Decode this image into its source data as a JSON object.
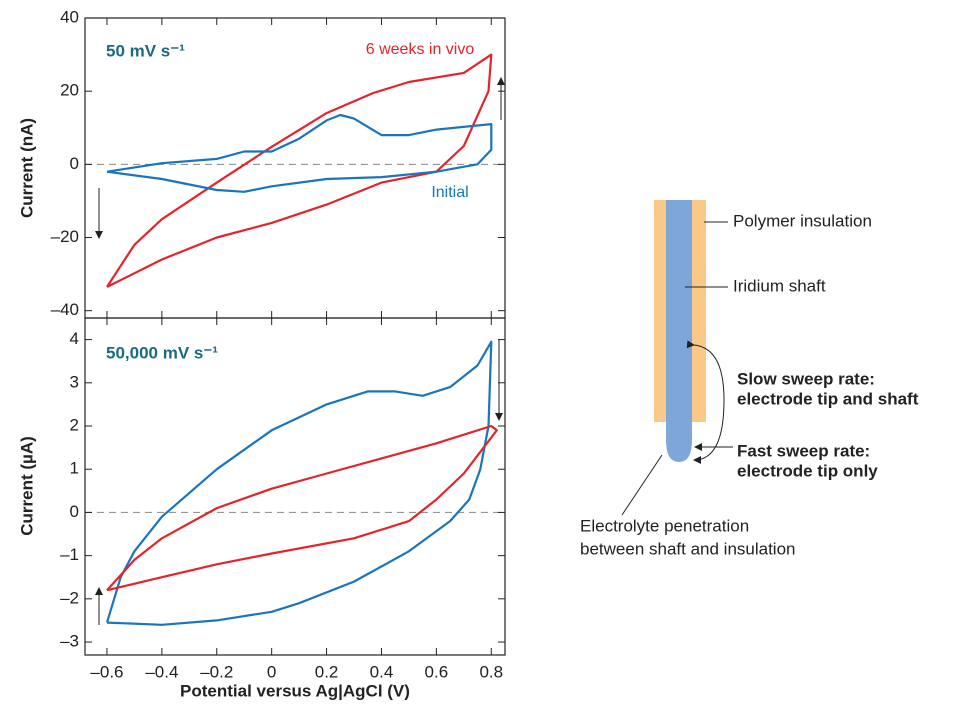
{
  "chart_data": [
    {
      "type": "line",
      "title": "50 mV s⁻¹",
      "y_label": "Current (nA)",
      "xlim": [
        -0.68,
        0.85
      ],
      "ylim": [
        -42,
        40
      ],
      "yticks": [
        {
          "value": -40,
          "label": "–40"
        },
        {
          "value": -20,
          "label": "–20"
        },
        0,
        20,
        40
      ],
      "series": [
        {
          "name": "6 weeks in vivo",
          "color": "#e3242b",
          "x": [
            -0.6,
            -0.5,
            -0.4,
            -0.2,
            0,
            0.2,
            0.37,
            0.5,
            0.7,
            0.8,
            0.79,
            0.7,
            0.6,
            0.4,
            0.2,
            0,
            -0.2,
            -0.4,
            -0.6
          ],
          "values": [
            -33.5,
            -22,
            -15,
            -5,
            4.8,
            14,
            19.5,
            22.5,
            25,
            30,
            20,
            5,
            -2,
            -5,
            -11,
            -16,
            -20,
            -26,
            -33.5
          ]
        },
        {
          "name": "Initial",
          "color": "#1a75bc",
          "x": [
            -0.6,
            -0.4,
            -0.2,
            -0.1,
            0,
            0.1,
            0.2,
            0.25,
            0.3,
            0.4,
            0.5,
            0.6,
            0.8,
            0.8,
            0.75,
            0.6,
            0.4,
            0.2,
            0,
            -0.1,
            -0.2,
            -0.4,
            -0.6
          ],
          "values": [
            -2,
            0.3,
            1.5,
            3.5,
            3.5,
            7,
            12,
            13.5,
            12.5,
            8,
            8,
            9.5,
            11,
            4,
            0,
            -2,
            -3.5,
            -4,
            -6,
            -7.5,
            -7,
            -4,
            -2
          ]
        }
      ]
    },
    {
      "type": "line",
      "title": "50,000 mV s⁻¹",
      "y_label": "Current (µA)",
      "x_label": "Potential versus Ag|AgCl (V)",
      "xlim": [
        -0.68,
        0.85
      ],
      "ylim": [
        -3.3,
        4.5
      ],
      "xticks": [
        {
          "value": -0.6,
          "label": "–0.6"
        },
        {
          "value": -0.4,
          "label": "–0.4"
        },
        {
          "value": -0.2,
          "label": "–0.2"
        },
        0,
        0.2,
        0.4,
        0.6,
        0.8
      ],
      "yticks": [
        {
          "value": -3,
          "label": "–3"
        },
        {
          "value": -2,
          "label": "–2"
        },
        {
          "value": -1,
          "label": "–1"
        },
        0,
        1,
        2,
        3,
        4
      ],
      "series": [
        {
          "color": "#1a75bc",
          "x": [
            -0.6,
            -0.55,
            -0.5,
            -0.4,
            -0.2,
            0,
            0.2,
            0.35,
            0.45,
            0.55,
            0.65,
            0.75,
            0.8,
            0.79,
            0.76,
            0.72,
            0.65,
            0.5,
            0.3,
            0.1,
            0,
            -0.2,
            -0.4,
            -0.6
          ],
          "values": [
            -2.55,
            -1.5,
            -0.9,
            -0.1,
            1,
            1.9,
            2.5,
            2.8,
            2.8,
            2.7,
            2.9,
            3.4,
            3.95,
            2,
            1,
            0.3,
            -0.2,
            -0.9,
            -1.6,
            -2.1,
            -2.3,
            -2.5,
            -2.6,
            -2.55
          ]
        },
        {
          "color": "#e3242b",
          "x": [
            -0.6,
            -0.5,
            -0.4,
            -0.2,
            0,
            0.2,
            0.4,
            0.6,
            0.8,
            0.82,
            0.7,
            0.6,
            0.5,
            0.3,
            0,
            -0.2,
            -0.4,
            -0.6
          ],
          "values": [
            -1.8,
            -1.1,
            -0.6,
            0.1,
            0.55,
            0.9,
            1.25,
            1.6,
            2,
            1.9,
            0.9,
            0.3,
            -0.2,
            -0.6,
            -0.95,
            -1.2,
            -1.5,
            -1.8
          ]
        }
      ]
    }
  ],
  "diagram": {
    "polymer": "Polymer insulation",
    "shaft": "Iridium shaft",
    "slow_sweep": [
      "Slow sweep rate:",
      "electrode tip and shaft"
    ],
    "fast_sweep": [
      "Fast sweep rate:",
      "electrode tip only"
    ],
    "electrolyte": [
      "Electrolyte penetration",
      "between shaft and insulation"
    ]
  }
}
